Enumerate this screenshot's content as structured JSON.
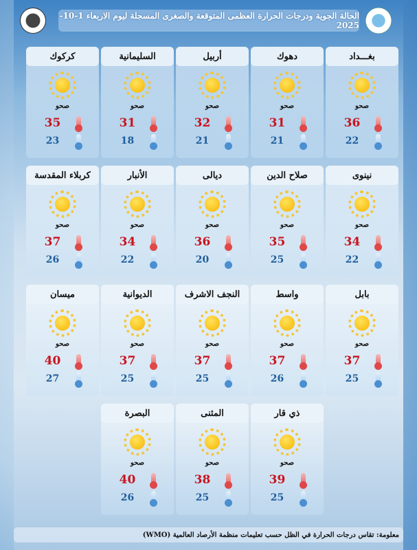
{
  "header": {
    "title": "الحالة الجوية ودرجات الحرارة العظمى المتوقعة والصغرى المسجلة ليوم الاربعاء 1-10-2025"
  },
  "footer": {
    "note": "معلومة: تقاس درجات الحرارة في الظل حسب تعليمات منظمة الأرصاد العالمية (WMO)"
  },
  "colors": {
    "max": "#c8141e",
    "min": "#1f5d9a"
  },
  "cities": [
    {
      "name": "بغـــداد",
      "condition": "صحو",
      "icon": "sun-icon",
      "max": "36",
      "min": "22"
    },
    {
      "name": "دهوك",
      "condition": "صحو",
      "icon": "sun-icon",
      "max": "31",
      "min": "21"
    },
    {
      "name": "أربيل",
      "condition": "صحو",
      "icon": "sun-icon",
      "max": "32",
      "min": "21"
    },
    {
      "name": "السليمانية",
      "condition": "صحو",
      "icon": "sun-icon",
      "max": "31",
      "min": "18"
    },
    {
      "name": "كركوك",
      "condition": "صحو",
      "icon": "sun-icon",
      "max": "35",
      "min": "23"
    },
    {
      "name": "نينوى",
      "condition": "صحو",
      "icon": "sun-icon",
      "max": "34",
      "min": "22"
    },
    {
      "name": "صلاح الدين",
      "condition": "صحو",
      "icon": "sun-icon",
      "max": "35",
      "min": "25"
    },
    {
      "name": "ديالى",
      "condition": "صحو",
      "icon": "sun-icon",
      "max": "36",
      "min": "20"
    },
    {
      "name": "الأنبار",
      "condition": "صحو",
      "icon": "sun-icon",
      "max": "34",
      "min": "22"
    },
    {
      "name": "كربلاء المقدسة",
      "condition": "صحو",
      "icon": "sun-icon",
      "max": "37",
      "min": "26"
    },
    {
      "name": "بابل",
      "condition": "صحو",
      "icon": "sun-icon",
      "max": "37",
      "min": "25"
    },
    {
      "name": "واسط",
      "condition": "صحو",
      "icon": "sun-icon",
      "max": "37",
      "min": "26"
    },
    {
      "name": "النجف الاشرف",
      "condition": "صحو",
      "icon": "sun-icon",
      "max": "37",
      "min": "25"
    },
    {
      "name": "الديوانية",
      "condition": "صحو",
      "icon": "sun-icon",
      "max": "37",
      "min": "25"
    },
    {
      "name": "ميسان",
      "condition": "صحو",
      "icon": "sun-icon",
      "max": "40",
      "min": "27"
    },
    {
      "name": "ذي قار",
      "condition": "صحو",
      "icon": "sun-icon",
      "max": "39",
      "min": "25"
    },
    {
      "name": "المثنى",
      "condition": "صحو",
      "icon": "sun-icon",
      "max": "38",
      "min": "25"
    },
    {
      "name": "البصرة",
      "condition": "صحو",
      "icon": "sun-icon",
      "max": "40",
      "min": "26"
    }
  ]
}
